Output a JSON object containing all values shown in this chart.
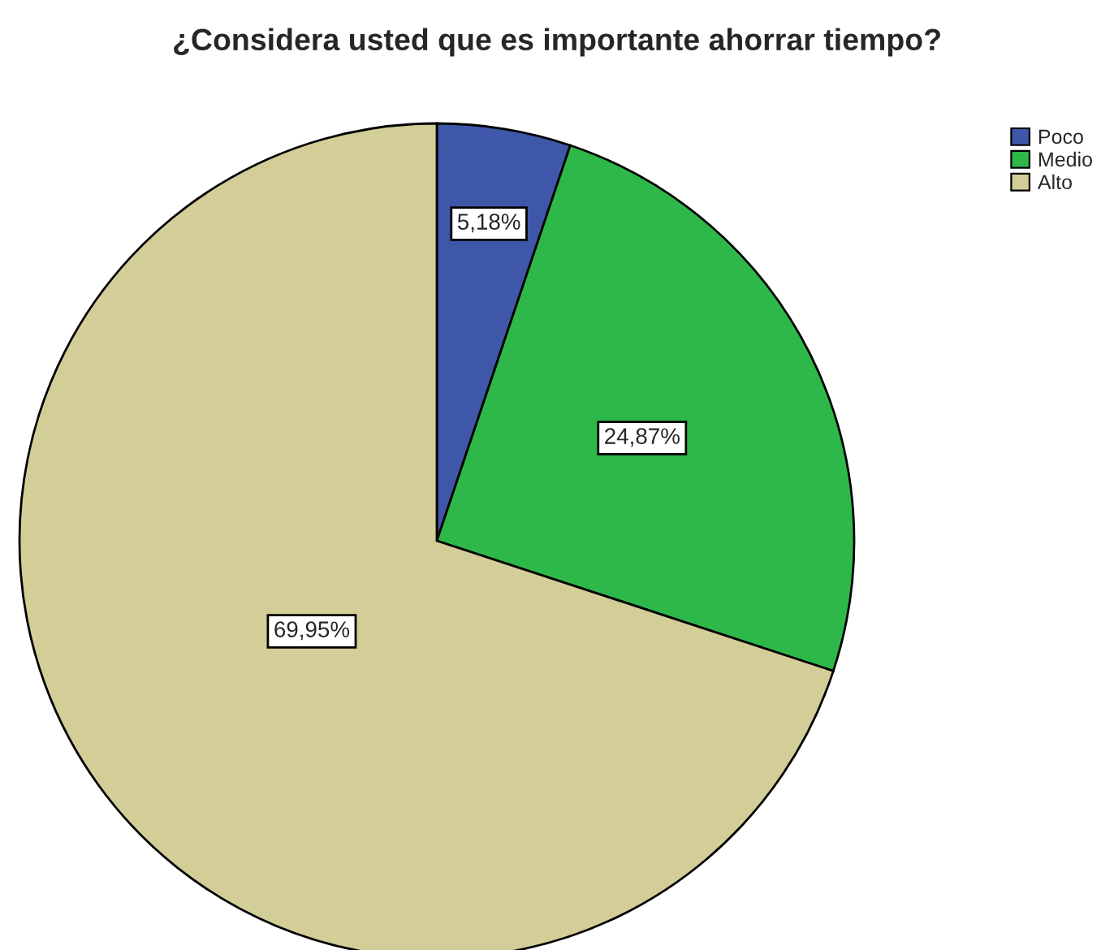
{
  "chart_data": {
    "type": "pie",
    "title": "¿Considera usted que es importante ahorrar tiempo?",
    "categories": [
      "Poco",
      "Medio",
      "Alto"
    ],
    "values": [
      5.18,
      24.87,
      69.95
    ],
    "value_labels": [
      "5,18%",
      "24,87%",
      "69,95%"
    ],
    "colors": [
      "#3f57a8",
      "#2fb84a",
      "#d3cd98"
    ],
    "legend": "top right"
  }
}
